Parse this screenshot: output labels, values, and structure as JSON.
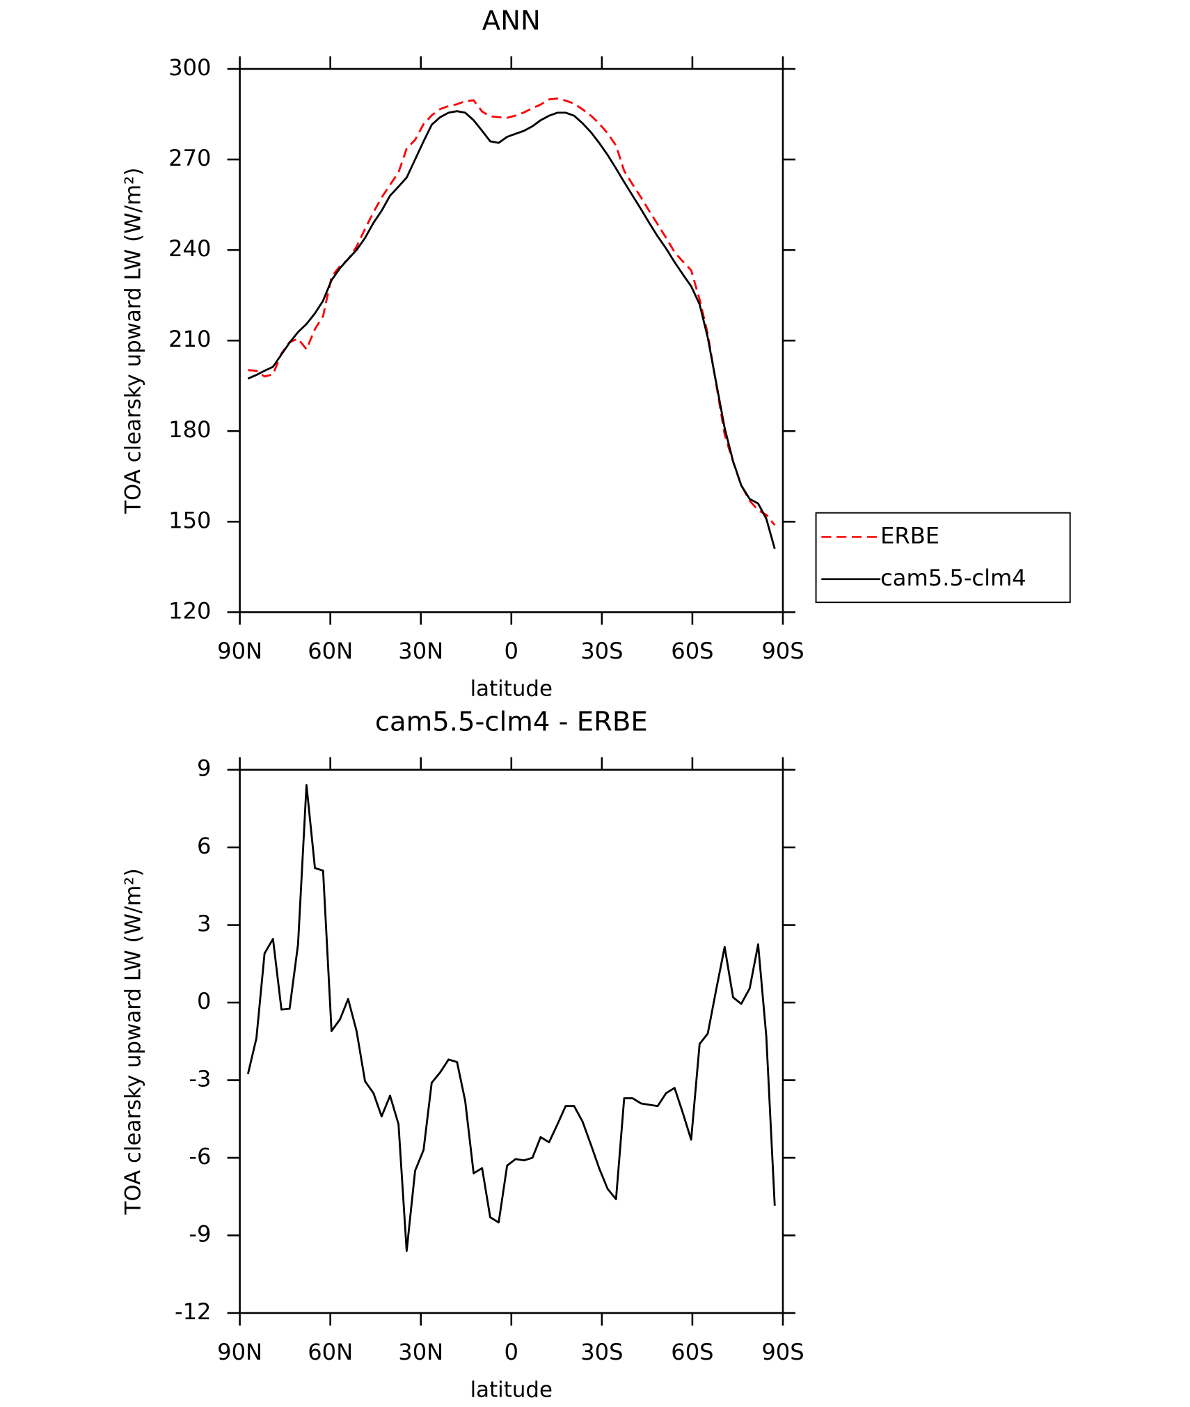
{
  "chart_data": [
    {
      "type": "line",
      "title": "ANN",
      "xlabel": "latitude",
      "ylabel": "TOA clearsky upward LW (W/m²)",
      "x": [
        87.3,
        84.5,
        81.8,
        79.0,
        76.2,
        73.5,
        70.7,
        67.9,
        65.1,
        62.4,
        59.6,
        56.8,
        54.1,
        51.3,
        48.5,
        45.7,
        43.0,
        40.2,
        37.4,
        34.7,
        31.9,
        29.1,
        26.4,
        23.6,
        20.8,
        18.0,
        15.3,
        12.5,
        9.7,
        7.0,
        4.2,
        1.4,
        -1.4,
        -4.2,
        -7.0,
        -9.7,
        -12.5,
        -15.3,
        -18.0,
        -20.8,
        -23.6,
        -26.4,
        -29.1,
        -31.9,
        -34.7,
        -37.4,
        -40.2,
        -43.0,
        -45.7,
        -48.5,
        -51.3,
        -54.1,
        -56.8,
        -59.6,
        -62.4,
        -65.1,
        -67.9,
        -70.7,
        -73.5,
        -76.2,
        -79.0,
        -81.8,
        -84.5,
        -87.3
      ],
      "series": [
        {
          "name": "ERBE",
          "color": "#ff0000",
          "style": "dashed",
          "values": [
            200.2,
            200.0,
            198.1,
            198.8,
            205.7,
            209.5,
            210.6,
            207.1,
            213.8,
            218.1,
            231.1,
            234.7,
            236.9,
            241.1,
            247.0,
            252.5,
            257.4,
            261.6,
            265.7,
            273.6,
            276.5,
            281.7,
            284.6,
            286.7,
            287.7,
            288.3,
            289.3,
            289.6,
            285.9,
            284.3,
            284.0,
            283.8,
            284.55,
            285.6,
            287.0,
            288.2,
            289.9,
            290.2,
            289.5,
            288.5,
            286.6,
            284.5,
            281.9,
            278.7,
            274.6,
            266.2,
            261.7,
            257.4,
            252.95,
            248.5,
            244.0,
            239.3,
            236.25,
            233.3,
            223.6,
            212.2,
            195.5,
            178.85,
            169.8,
            162.05,
            156.95,
            153.75,
            152.3,
            148.85
          ]
        },
        {
          "name": "cam5.5-clm4",
          "color": "#000000",
          "style": "solid",
          "values": [
            197.4,
            198.6,
            200.0,
            201.3,
            205.4,
            209.3,
            212.8,
            215.5,
            219.0,
            223.2,
            230.0,
            234.0,
            237.0,
            240.0,
            244.0,
            249.0,
            253.0,
            258.0,
            261.0,
            264.0,
            270.0,
            276.0,
            281.5,
            284.0,
            285.5,
            286.0,
            285.5,
            283.0,
            279.5,
            276.0,
            275.5,
            277.5,
            278.5,
            279.5,
            281.0,
            283.0,
            284.5,
            285.5,
            285.5,
            284.5,
            282.0,
            279.0,
            275.5,
            271.5,
            267.0,
            262.5,
            258.0,
            253.5,
            249.0,
            244.5,
            240.5,
            236.0,
            232.0,
            228.0,
            222.0,
            211.0,
            196.0,
            181.0,
            170.0,
            162.0,
            157.5,
            156.0,
            151.0,
            141.0
          ]
        }
      ],
      "xlim": [
        90,
        -90
      ],
      "xticks": [
        {
          "value": 90,
          "label": "90N"
        },
        {
          "value": 60,
          "label": "60N"
        },
        {
          "value": 30,
          "label": "30N"
        },
        0,
        {
          "value": -30,
          "label": "30S"
        },
        {
          "value": -60,
          "label": "60S"
        },
        {
          "value": -90,
          "label": "90S"
        }
      ],
      "ylim": [
        120,
        300
      ],
      "yticks": [
        120,
        150,
        180,
        210,
        240,
        270,
        300
      ],
      "legend": "outside-right"
    },
    {
      "type": "line",
      "title": "cam5.5-clm4 - ERBE",
      "xlabel": "latitude",
      "ylabel": "TOA clearsky upward LW (W/m²)",
      "x": [
        87.3,
        84.5,
        81.8,
        79.0,
        76.2,
        73.5,
        70.7,
        67.9,
        65.1,
        62.4,
        59.6,
        56.8,
        54.1,
        51.3,
        48.5,
        45.7,
        43.0,
        40.2,
        37.4,
        34.7,
        31.9,
        29.1,
        26.4,
        23.6,
        20.8,
        18.0,
        15.3,
        12.5,
        9.7,
        7.0,
        4.2,
        1.4,
        -1.4,
        -4.2,
        -7.0,
        -9.7,
        -12.5,
        -15.3,
        -18.0,
        -20.8,
        -23.6,
        -26.4,
        -29.1,
        -31.9,
        -34.7,
        -37.4,
        -40.2,
        -43.0,
        -45.7,
        -48.5,
        -51.3,
        -54.1,
        -56.8,
        -59.6,
        -62.4,
        -65.1,
        -67.9,
        -70.7,
        -73.5,
        -76.2,
        -79.0,
        -81.8,
        -84.5,
        -87.3
      ],
      "values": [
        -2.76,
        -1.38,
        1.9,
        2.46,
        -0.27,
        -0.24,
        2.25,
        8.41,
        5.2,
        5.1,
        -1.1,
        -0.65,
        0.14,
        -1.1,
        -3.04,
        -3.5,
        -4.4,
        -3.6,
        -4.7,
        -9.6,
        -6.5,
        -5.7,
        -3.1,
        -2.7,
        -2.2,
        -2.3,
        -3.8,
        -6.6,
        -6.4,
        -8.3,
        -8.5,
        -6.3,
        -6.05,
        -6.1,
        -6.0,
        -5.2,
        -5.4,
        -4.7,
        -4.0,
        -4.0,
        -4.6,
        -5.5,
        -6.4,
        -7.2,
        -7.6,
        -3.7,
        -3.7,
        -3.9,
        -3.95,
        -4.0,
        -3.5,
        -3.3,
        -4.25,
        -5.3,
        -1.6,
        -1.2,
        0.5,
        2.15,
        0.2,
        -0.05,
        0.55,
        2.25,
        -1.3,
        -7.85
      ],
      "color": "#000000",
      "xlim": [
        90,
        -90
      ],
      "xticks": [
        {
          "value": 90,
          "label": "90N"
        },
        {
          "value": 60,
          "label": "60N"
        },
        {
          "value": 30,
          "label": "30N"
        },
        0,
        {
          "value": -30,
          "label": "30S"
        },
        {
          "value": -60,
          "label": "60S"
        },
        {
          "value": -90,
          "label": "90S"
        }
      ],
      "ylim": [
        -12,
        9
      ],
      "yticks": [
        -12,
        -9,
        -6,
        -3,
        0,
        3,
        6,
        9
      ]
    }
  ]
}
